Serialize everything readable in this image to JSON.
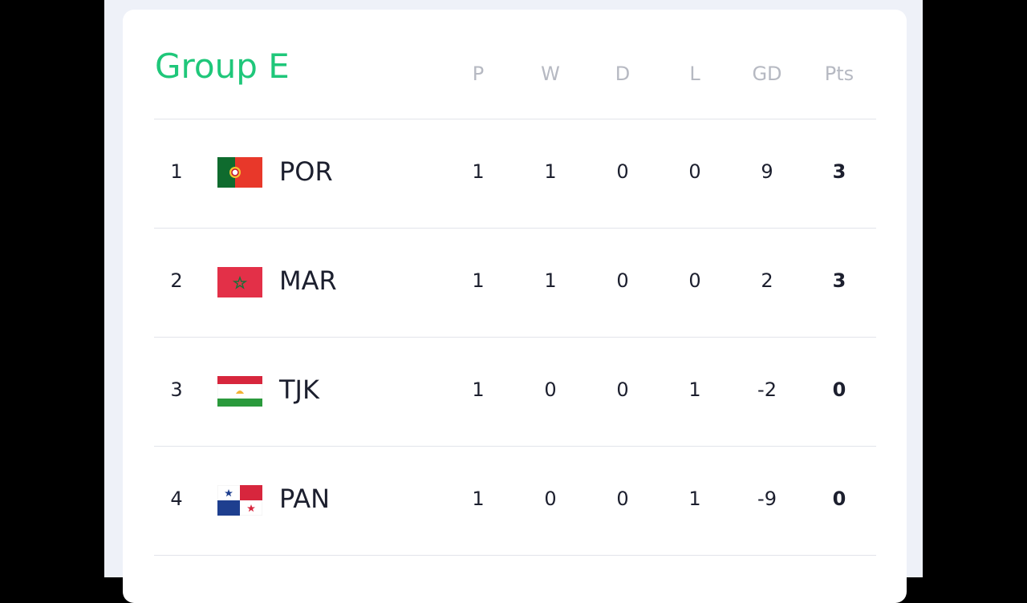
{
  "title": "Group E",
  "columns": [
    "P",
    "W",
    "D",
    "L",
    "GD",
    "Pts"
  ],
  "rows": [
    [
      1,
      "POR",
      1,
      1,
      0,
      0,
      9,
      3
    ],
    [
      2,
      "MAR",
      1,
      1,
      0,
      0,
      2,
      3
    ],
    [
      3,
      "TJK",
      1,
      0,
      0,
      1,
      -2,
      0
    ],
    [
      4,
      "PAN",
      1,
      0,
      0,
      1,
      -9,
      0
    ]
  ]
}
